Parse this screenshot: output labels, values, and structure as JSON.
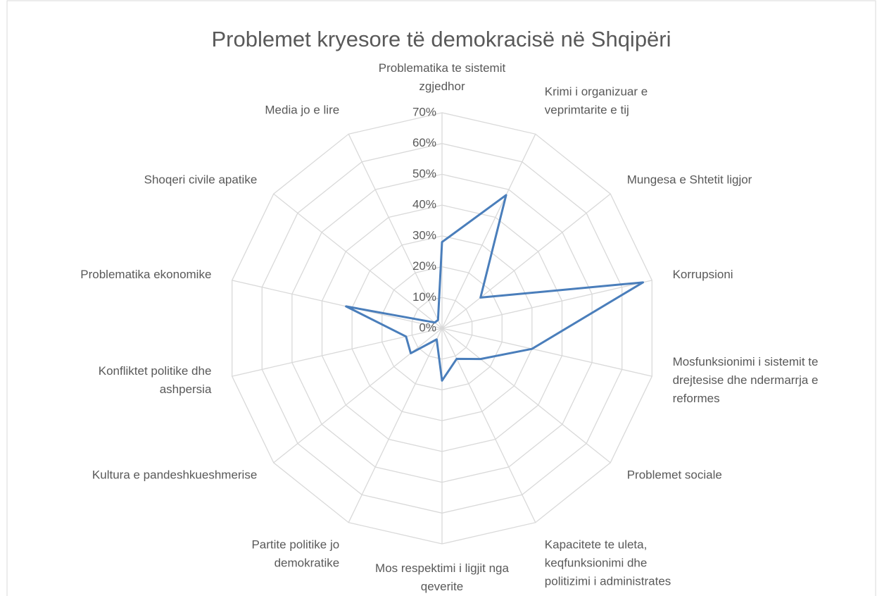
{
  "chart_data": {
    "type": "radar",
    "title": "Problemet kryesore të demokracisë në Shqipëri",
    "categories": [
      "Problematika te sistemit zgjedhor",
      "Krimi i organizuar e veprimtarite e tij",
      "Mungesa e Shtetit ligjor",
      "Korrupsioni",
      "Mosfunksionimi i sistemit te drejtesise dhe ndermarrja e reformes",
      "Problemet sociale",
      "Kapacitete te uleta, keqfunksionimi dhe politizimi i administrates",
      "Mos respektimi i ligjit nga qeverite",
      "Partite politike jo demokratike",
      "Kultura e pandeshkueshmerise",
      "Konfliktet politike dhe ashpersia",
      "Problematika ekonomike",
      "Shoqeri civile apatike",
      "Media jo e lire"
    ],
    "values": [
      0.28,
      0.48,
      0.16,
      0.67,
      0.3,
      0.16,
      0.11,
      0.17,
      0.04,
      0.13,
      0.12,
      0.32,
      0.03,
      0.03
    ],
    "color": "#4a7ebb",
    "ylim": [
      0,
      0.7
    ],
    "yticks": [
      {
        "value": 0,
        "label": "0%"
      },
      {
        "value": 0.1,
        "label": "10%"
      },
      {
        "value": 0.2,
        "label": "20%"
      },
      {
        "value": 0.3,
        "label": "30%"
      },
      {
        "value": 0.4,
        "label": "40%"
      },
      {
        "value": 0.5,
        "label": "50%"
      },
      {
        "value": 0.6,
        "label": "60%"
      },
      {
        "value": 0.7,
        "label": "70%"
      }
    ],
    "grid": true
  }
}
